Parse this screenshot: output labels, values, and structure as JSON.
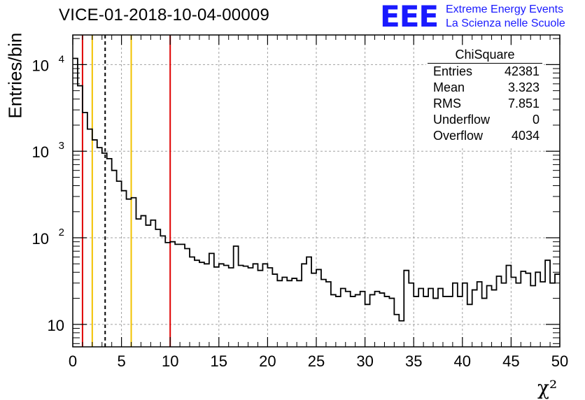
{
  "header": {
    "title": "VICE-01-2018-10-04-00009",
    "logo_text": "EEE",
    "logo_line1": "Extreme Energy Events",
    "logo_line2": "La Scienza nelle Scuole"
  },
  "colors": {
    "logo": "#1a1aff",
    "red_line": "#e00000",
    "yellow_line": "#f2c200",
    "grid": "#a0a0a0",
    "hist": "#000000"
  },
  "stats": {
    "title": "ChiSquare",
    "rows": [
      {
        "label": "Entries",
        "value": "42381"
      },
      {
        "label": "Mean",
        "value": "3.323"
      },
      {
        "label": "RMS",
        "value": "7.851"
      },
      {
        "label": "Underflow",
        "value": "0"
      },
      {
        "label": "Overflow",
        "value": "4034"
      }
    ]
  },
  "chart_data": {
    "type": "histogram",
    "title": "VICE-01-2018-10-04-00009",
    "xlabel": "χ²",
    "ylabel": "Entries/bin",
    "yscale": "log",
    "xlim": [
      0,
      50
    ],
    "ylim": [
      5.5,
      22000
    ],
    "grid": true,
    "bin_width": 0.5,
    "x_ticks": [
      "0",
      "5",
      "10",
      "15",
      "20",
      "25",
      "30",
      "35",
      "40",
      "45",
      "50"
    ],
    "y_ticks": [
      {
        "value": 10,
        "label": "10"
      },
      {
        "value": 100,
        "label": "10",
        "exp": "2"
      },
      {
        "value": 1000,
        "label": "10",
        "exp": "3"
      },
      {
        "value": 10000,
        "label": "10",
        "exp": "4"
      }
    ],
    "counts": [
      11800,
      5700,
      2800,
      1800,
      1350,
      1100,
      950,
      820,
      600,
      450,
      350,
      280,
      290,
      165,
      180,
      140,
      160,
      125,
      105,
      88,
      90,
      84,
      84,
      75,
      60,
      55,
      52,
      50,
      66,
      46,
      50,
      48,
      45,
      80,
      48,
      47,
      45,
      50,
      42,
      50,
      45,
      38,
      32,
      35,
      32,
      34,
      32,
      50,
      60,
      39,
      43,
      33,
      31,
      22,
      21,
      26,
      24,
      21,
      22,
      24,
      17,
      22,
      24,
      23,
      21,
      20,
      13,
      11,
      42,
      30,
      21,
      26,
      21,
      26,
      20,
      26,
      21,
      21,
      30,
      21,
      30,
      17,
      25,
      31,
      20,
      28,
      25,
      36,
      30,
      48,
      35,
      30,
      41,
      39,
      28,
      40,
      31,
      55,
      30,
      38
    ],
    "vertical_lines": [
      {
        "x": 1,
        "color": "red"
      },
      {
        "x": 2,
        "color": "yellow"
      },
      {
        "x": 3.323,
        "color": "black",
        "style": "dashed"
      },
      {
        "x": 6,
        "color": "yellow"
      },
      {
        "x": 10,
        "color": "red"
      }
    ]
  }
}
